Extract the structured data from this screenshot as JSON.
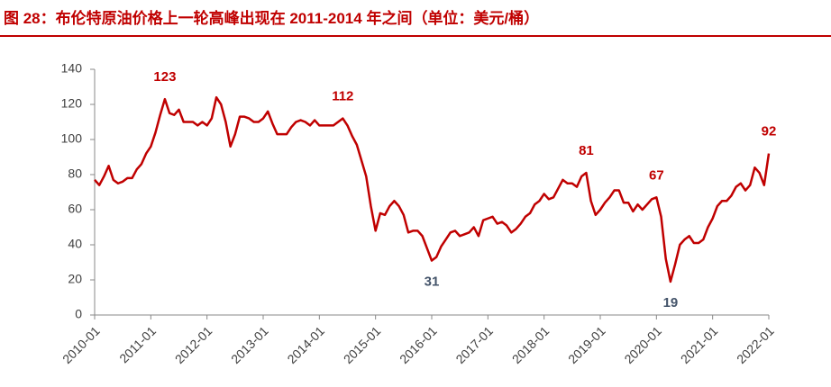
{
  "chart_data": {
    "type": "line",
    "title": "图 28：布伦特原油价格上一轮高峰出现在 2011-2014 年之间（单位：美元/桶）",
    "x": [
      "2010-01",
      "2010-02",
      "2010-03",
      "2010-04",
      "2010-05",
      "2010-06",
      "2010-07",
      "2010-08",
      "2010-09",
      "2010-10",
      "2010-11",
      "2010-12",
      "2011-01",
      "2011-02",
      "2011-03",
      "2011-04",
      "2011-05",
      "2011-06",
      "2011-07",
      "2011-08",
      "2011-09",
      "2011-10",
      "2011-11",
      "2011-12",
      "2012-01",
      "2012-02",
      "2012-03",
      "2012-04",
      "2012-05",
      "2012-06",
      "2012-07",
      "2012-08",
      "2012-09",
      "2012-10",
      "2012-11",
      "2012-12",
      "2013-01",
      "2013-02",
      "2013-03",
      "2013-04",
      "2013-05",
      "2013-06",
      "2013-07",
      "2013-08",
      "2013-09",
      "2013-10",
      "2013-11",
      "2013-12",
      "2014-01",
      "2014-02",
      "2014-03",
      "2014-04",
      "2014-05",
      "2014-06",
      "2014-07",
      "2014-08",
      "2014-09",
      "2014-10",
      "2014-11",
      "2014-12",
      "2015-01",
      "2015-02",
      "2015-03",
      "2015-04",
      "2015-05",
      "2015-06",
      "2015-07",
      "2015-08",
      "2015-09",
      "2015-10",
      "2015-11",
      "2015-12",
      "2016-01",
      "2016-02",
      "2016-03",
      "2016-04",
      "2016-05",
      "2016-06",
      "2016-07",
      "2016-08",
      "2016-09",
      "2016-10",
      "2016-11",
      "2016-12",
      "2017-01",
      "2017-02",
      "2017-03",
      "2017-04",
      "2017-05",
      "2017-06",
      "2017-07",
      "2017-08",
      "2017-09",
      "2017-10",
      "2017-11",
      "2017-12",
      "2018-01",
      "2018-02",
      "2018-03",
      "2018-04",
      "2018-05",
      "2018-06",
      "2018-07",
      "2018-08",
      "2018-09",
      "2018-10",
      "2018-11",
      "2018-12",
      "2019-01",
      "2019-02",
      "2019-03",
      "2019-04",
      "2019-05",
      "2019-06",
      "2019-07",
      "2019-08",
      "2019-09",
      "2019-10",
      "2019-11",
      "2019-12",
      "2020-01",
      "2020-02",
      "2020-03",
      "2020-04",
      "2020-05",
      "2020-06",
      "2020-07",
      "2020-08",
      "2020-09",
      "2020-10",
      "2020-11",
      "2020-12",
      "2021-01",
      "2021-02",
      "2021-03",
      "2021-04",
      "2021-05",
      "2021-06",
      "2021-07",
      "2021-08",
      "2021-09",
      "2021-10",
      "2021-11",
      "2021-12",
      "2022-01"
    ],
    "values": [
      77,
      74,
      79,
      85,
      77,
      75,
      76,
      78,
      78,
      83,
      86,
      92,
      96,
      104,
      114,
      123,
      115,
      114,
      117,
      110,
      110,
      110,
      108,
      110,
      108,
      112,
      124,
      120,
      110,
      96,
      103,
      113,
      113,
      112,
      110,
      110,
      112,
      116,
      109,
      103,
      103,
      103,
      107,
      110,
      111,
      110,
      108,
      111,
      108,
      108,
      108,
      108,
      110,
      112,
      108,
      102,
      97,
      88,
      79,
      62,
      48,
      58,
      57,
      62,
      65,
      62,
      57,
      47,
      48,
      48,
      45,
      38,
      31,
      33,
      39,
      43,
      47,
      48,
      45,
      46,
      47,
      50,
      45,
      54,
      55,
      56,
      52,
      53,
      51,
      47,
      49,
      52,
      56,
      58,
      63,
      65,
      69,
      66,
      67,
      72,
      77,
      75,
      75,
      73,
      79,
      81,
      65,
      57,
      60,
      64,
      67,
      71,
      71,
      64,
      64,
      59,
      63,
      60,
      63,
      66,
      67,
      56,
      32,
      19,
      29,
      40,
      43,
      45,
      41,
      41,
      43,
      50,
      55,
      62,
      65,
      65,
      68,
      73,
      75,
      71,
      74,
      84,
      81,
      74,
      92
    ],
    "color": "#c00000",
    "ylim": [
      0,
      140
    ],
    "yticks": [
      0,
      20,
      40,
      60,
      80,
      100,
      120,
      140
    ],
    "xlim": [
      "2010-01",
      "2022-01"
    ],
    "xticks": [
      "2010-01",
      "2011-01",
      "2012-01",
      "2013-01",
      "2014-01",
      "2015-01",
      "2016-01",
      "2017-01",
      "2018-01",
      "2019-01",
      "2020-01",
      "2021-01",
      "2022-01"
    ],
    "annotations": [
      {
        "x": "2011-04",
        "value": 123,
        "color": "#c00000",
        "position": "above"
      },
      {
        "x": "2014-06",
        "value": 112,
        "color": "#c00000",
        "position": "above"
      },
      {
        "x": "2016-01",
        "value": 31,
        "color": "#44546a",
        "position": "below"
      },
      {
        "x": "2018-10",
        "value": 81,
        "color": "#c00000",
        "position": "above"
      },
      {
        "x": "2020-01",
        "value": 67,
        "color": "#c00000",
        "position": "above"
      },
      {
        "x": "2020-04",
        "value": 19,
        "color": "#44546a",
        "position": "below"
      },
      {
        "x": "2022-01",
        "value": 92,
        "color": "#c00000",
        "position": "above"
      }
    ]
  }
}
